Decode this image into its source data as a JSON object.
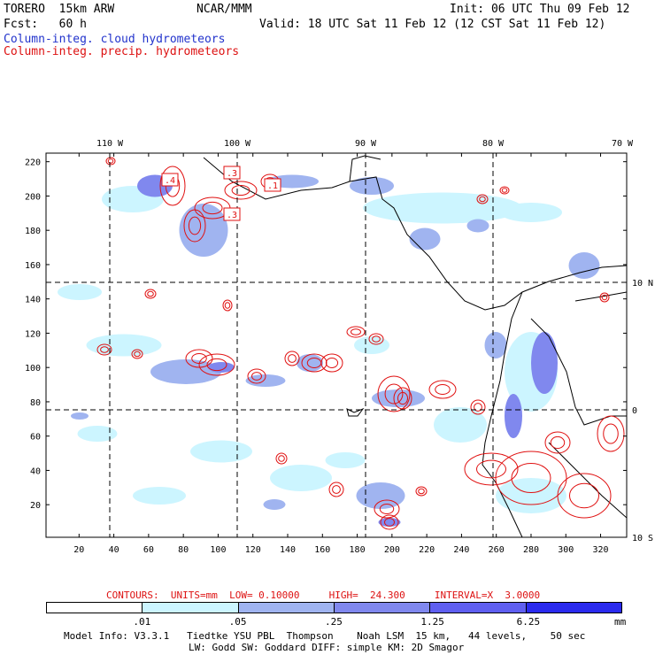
{
  "header": {
    "model": "TORERO  15km ARW",
    "org": "NCAR/MMM",
    "init": "Init: 06 UTC Thu 09 Feb 12",
    "fcst": "Fcst:   60 h",
    "valid": "Valid: 18 UTC Sat 11 Feb 12 (12 CST Sat 11 Feb 12)",
    "legend_blue": "Column-integ. cloud hydrometeors",
    "legend_red": "Column-integ. precip. hydrometeors"
  },
  "chart_data": {
    "type": "heatmap",
    "title": "Column-integ. cloud hydrometeors / Column-integ. precip. hydrometeors",
    "x_ticks": [
      20,
      40,
      60,
      80,
      100,
      120,
      140,
      160,
      180,
      200,
      220,
      240,
      260,
      280,
      300,
      320
    ],
    "y_ticks": [
      20,
      40,
      60,
      80,
      100,
      120,
      140,
      160,
      180,
      200,
      220
    ],
    "xlim": [
      1,
      335
    ],
    "ylim": [
      1,
      225
    ],
    "lon_labels": [
      "110 W",
      "100 W",
      "90 W",
      "80 W",
      "70 W"
    ],
    "lat_labels": [
      "10 N",
      "0",
      "10 S"
    ],
    "contour_labels": [
      ".1",
      ".3",
      ".4",
      ".3"
    ],
    "contours_info": "CONTOURS:  UNITS=mm  LOW= 0.10000     HIGH=  24.300     INTERVAL=X  3.0000",
    "colorbar": {
      "levels": [
        ".01",
        ".05",
        ".25",
        "1.25",
        "6.25"
      ],
      "unit": "mm",
      "colors": [
        "#ffffff",
        "#ccf5ff",
        "#a0b4f0",
        "#8088ee",
        "#5f5ff0",
        "#2a2aee"
      ]
    },
    "colors": {
      "cloud": "#6e78ee",
      "precip": "#e01010",
      "border": "#000000"
    }
  },
  "footer": {
    "line1": "Model Info: V3.3.1   Tiedtke YSU PBL  Thompson    Noah LSM  15 km,   44 levels,    50 sec",
    "line2": "LW: Godd SW: Goddard DIFF: simple KM: 2D Smagor"
  }
}
